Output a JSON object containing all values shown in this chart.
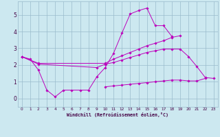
{
  "xlabel": "Windchill (Refroidissement éolien,°C)",
  "bg_color": "#cce8f0",
  "line_color": "#bb00bb",
  "grid_color": "#99bbcc",
  "xlim": [
    -0.5,
    23.5
  ],
  "ylim": [
    -0.5,
    5.8
  ],
  "xticks": [
    0,
    1,
    2,
    3,
    4,
    5,
    6,
    7,
    8,
    9,
    10,
    11,
    12,
    13,
    14,
    15,
    16,
    17,
    18,
    19,
    20,
    21,
    22,
    23
  ],
  "yticks": [
    0,
    1,
    2,
    3,
    4,
    5
  ],
  "series1_x": [
    0,
    1,
    2,
    3,
    4,
    5,
    6,
    7,
    8,
    9,
    10,
    11,
    12,
    13,
    14,
    15,
    16,
    17,
    18
  ],
  "series1_y": [
    2.5,
    2.35,
    1.7,
    0.5,
    0.1,
    0.5,
    0.5,
    0.5,
    0.5,
    1.3,
    1.85,
    2.7,
    3.9,
    5.05,
    5.25,
    5.4,
    4.35,
    4.35,
    3.7
  ],
  "series2_x": [
    0,
    2,
    10,
    11,
    12,
    13,
    14,
    15,
    16,
    17,
    18,
    19
  ],
  "series2_y": [
    2.5,
    2.1,
    2.1,
    2.35,
    2.55,
    2.75,
    2.95,
    3.15,
    3.3,
    3.45,
    3.65,
    3.75
  ],
  "series3_x": [
    0,
    2,
    9,
    10,
    11,
    12,
    13,
    14,
    15,
    16,
    17,
    18,
    19,
    20,
    21,
    22,
    23
  ],
  "series3_y": [
    2.5,
    2.05,
    1.85,
    2.05,
    2.15,
    2.3,
    2.45,
    2.6,
    2.75,
    2.85,
    2.95,
    2.95,
    2.95,
    2.5,
    1.9,
    1.25,
    1.2
  ],
  "series4_x": [
    10,
    11,
    12,
    13,
    14,
    15,
    16,
    17,
    18,
    19,
    20,
    21,
    22
  ],
  "series4_y": [
    0.7,
    0.75,
    0.8,
    0.85,
    0.9,
    0.95,
    1.0,
    1.05,
    1.1,
    1.1,
    1.05,
    1.05,
    1.2
  ]
}
